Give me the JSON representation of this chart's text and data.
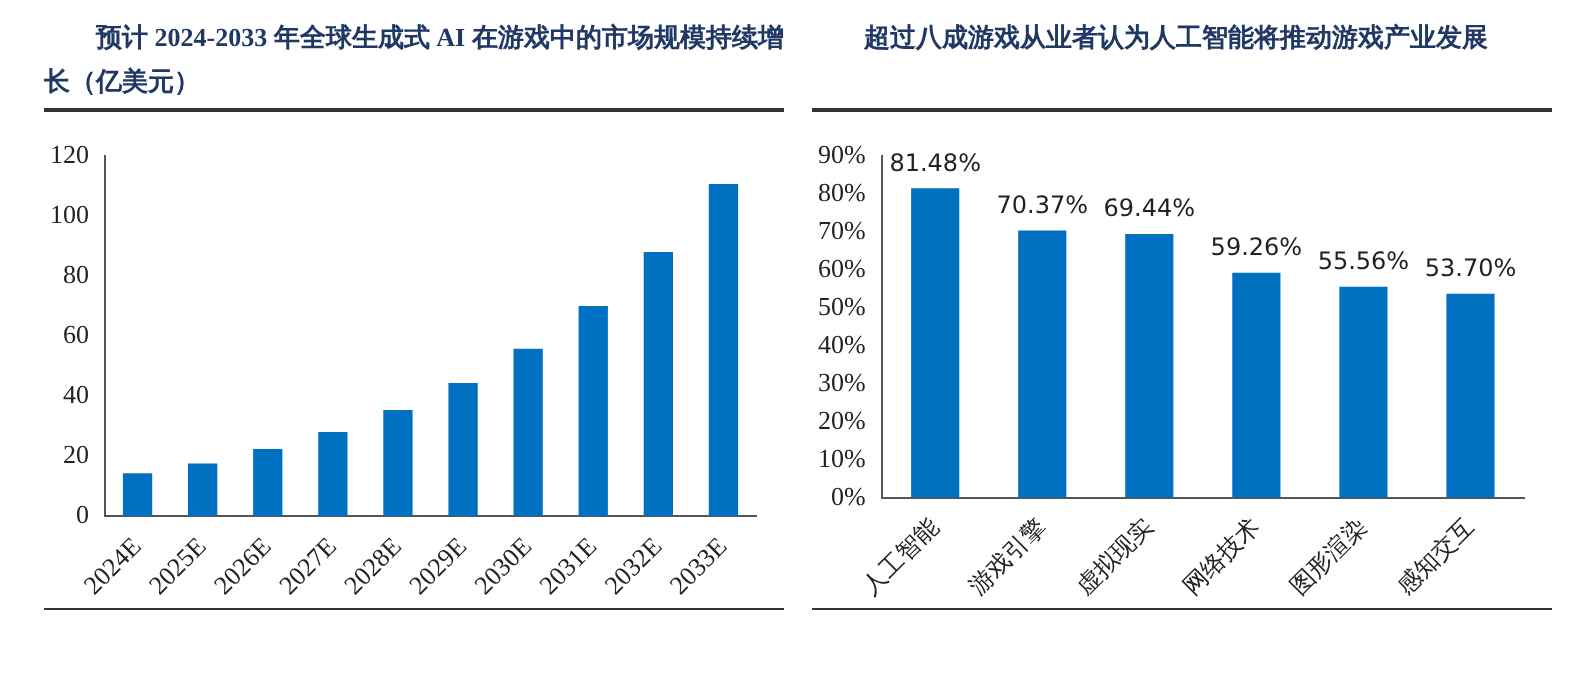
{
  "chart_data": [
    {
      "type": "bar",
      "title": "预计 2024-2033 年全球生成式 AI 在游戏中的市场规模持续增长（亿美元）",
      "categories": [
        "2024E",
        "2025E",
        "2026E",
        "2027E",
        "2028E",
        "2029E",
        "2030E",
        "2031E",
        "2032E",
        "2033E"
      ],
      "series": [
        {
          "color": "#0070c0",
          "values": [
            14.2,
            17.5,
            22.3,
            28,
            35.3,
            44.3,
            55.7,
            70,
            88,
            110.7
          ]
        }
      ],
      "ylim": [
        0,
        120
      ],
      "yticks": [
        0,
        20,
        40,
        60,
        80,
        100,
        120
      ],
      "grid": false,
      "legend": false
    },
    {
      "type": "bar",
      "title": "超过八成游戏从业者认为人工智能将推动游戏产业发展",
      "categories": [
        "人工智能",
        "游戏引擎",
        "虚拟现实",
        "网络技术",
        "图形渲染",
        "感知交互"
      ],
      "series": [
        {
          "color": "#0070c0",
          "values": [
            81.48,
            70.37,
            69.44,
            59.26,
            55.56,
            53.7
          ],
          "value_labels": [
            "81.48%",
            "70.37%",
            "69.44%",
            "59.26%",
            "55.56%",
            "53.70%"
          ]
        }
      ],
      "ylim": [
        0,
        90
      ],
      "yticks": [
        {
          "value": 0,
          "label": "0%"
        },
        {
          "value": 10,
          "label": "10%"
        },
        {
          "value": 20,
          "label": "20%"
        },
        {
          "value": 30,
          "label": "30%"
        },
        {
          "value": 40,
          "label": "40%"
        },
        {
          "value": 50,
          "label": "50%"
        },
        {
          "value": 60,
          "label": "60%"
        },
        {
          "value": 70,
          "label": "70%"
        },
        {
          "value": 80,
          "label": "80%"
        },
        {
          "value": 90,
          "label": "90%"
        }
      ],
      "grid": false,
      "legend": false
    }
  ]
}
